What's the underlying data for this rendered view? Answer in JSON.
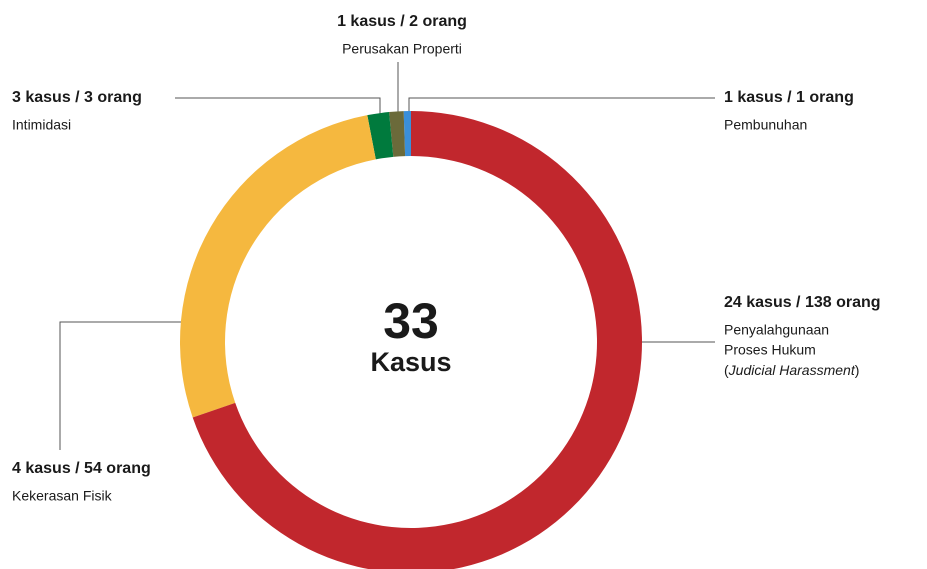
{
  "chart_data": {
    "type": "donut",
    "categories": [
      [
        "Penyalahgunaan",
        "Proses Hukum",
        "(Judicial Harassment)"
      ],
      [
        "Kekerasan Fisik"
      ],
      [
        "Intimidasi"
      ],
      [
        "Perusakan Properti"
      ],
      [
        "Pembunuhan"
      ]
    ],
    "values": [
      138,
      54,
      3,
      2,
      1
    ],
    "value_labels": [
      "24 kasus / 138 orang",
      "4 kasus / 54 orang",
      "3 kasus / 3 orang",
      "1 kasus / 2 orang",
      "1 kasus / 1 orang"
    ],
    "colors": [
      "#c1272d",
      "#f5b83f",
      "#007a3d",
      "#6b6a3a",
      "#3a8fd9"
    ],
    "center_value": 33,
    "center_label": "Kasus"
  }
}
